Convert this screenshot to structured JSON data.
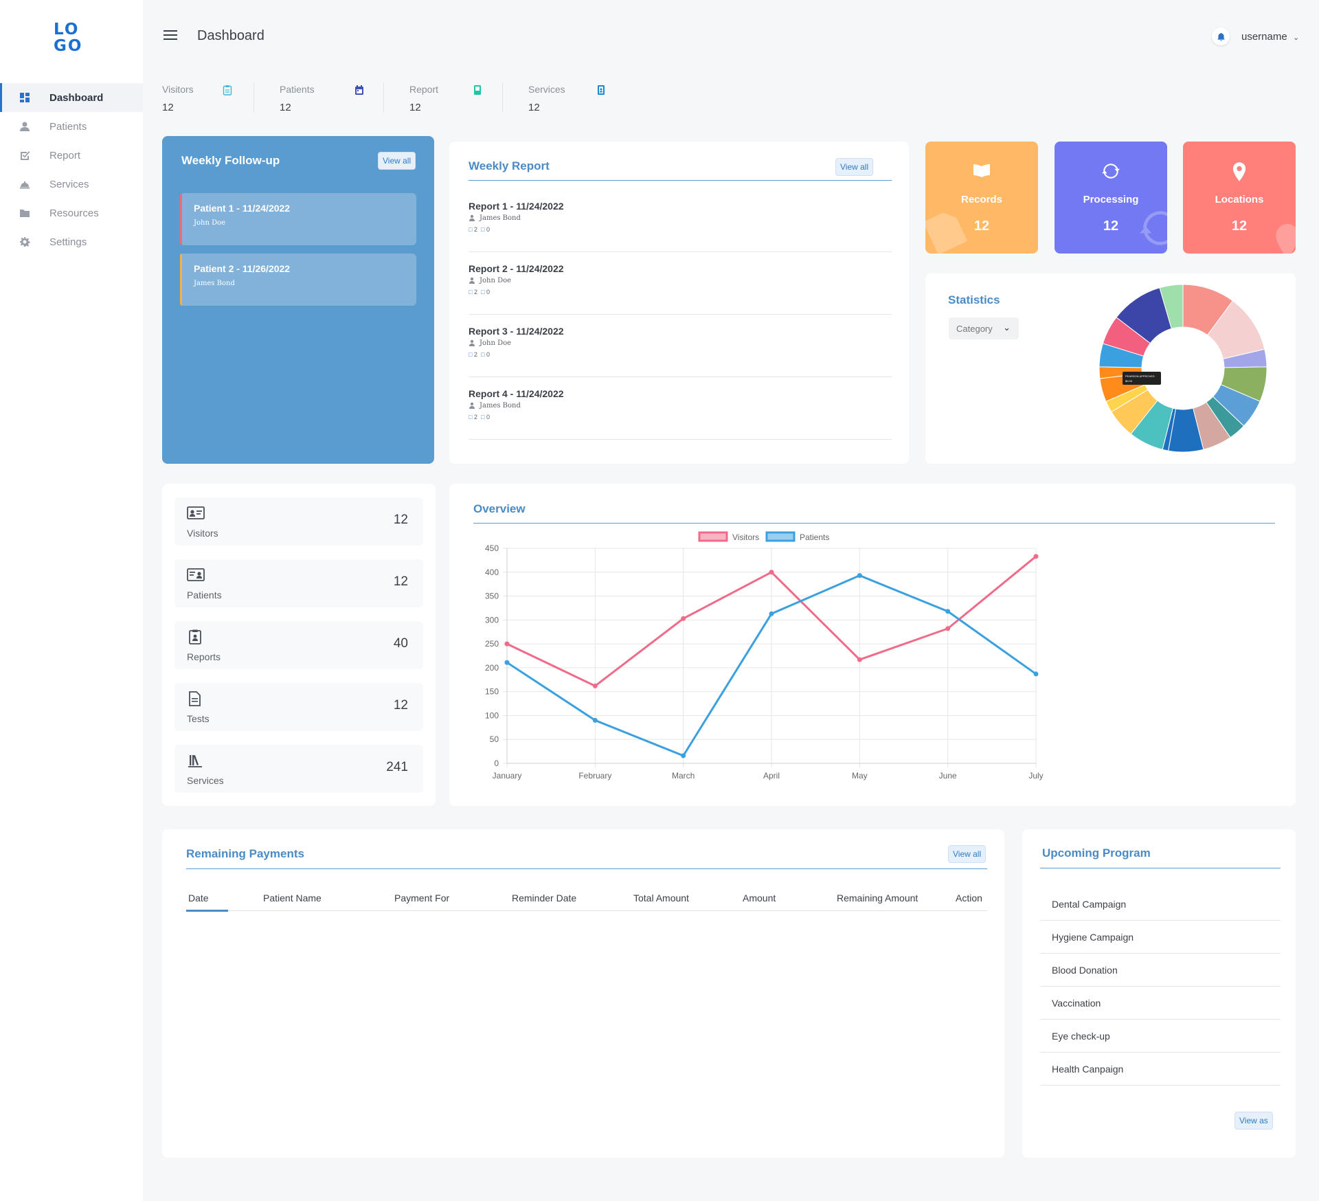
{
  "logo": "LO GO",
  "sidebar": {
    "items": [
      {
        "label": "Dashboard",
        "icon": "dashboard-icon"
      },
      {
        "label": "Patients",
        "icon": "person-icon"
      },
      {
        "label": "Report",
        "icon": "checkbox-icon"
      },
      {
        "label": "Services",
        "icon": "cloche-icon"
      },
      {
        "label": "Resources",
        "icon": "folder-icon"
      },
      {
        "label": "Settings",
        "icon": "gear-icon"
      }
    ]
  },
  "header": {
    "title": "Dashboard",
    "username": "username"
  },
  "top_stats": [
    {
      "label": "Visitors",
      "value": "12",
      "icon": "clipboard-icon",
      "color": "#3bb9d6"
    },
    {
      "label": "Patients",
      "value": "12",
      "icon": "calendar-icon",
      "color": "#3f51b5"
    },
    {
      "label": "Report",
      "value": "12",
      "icon": "document-icon",
      "color": "#22c4a8"
    },
    {
      "label": "Services",
      "value": "12",
      "icon": "badge-icon",
      "color": "#1e88c7"
    }
  ],
  "weekly_followup": {
    "title": "Weekly Follow-up",
    "view_all": "View all",
    "items": [
      {
        "name": "Patient 1 - 11/24/2022",
        "person": "John Doe",
        "bar_color": "#f06b7a"
      },
      {
        "name": "Patient 2 - 11/26/2022",
        "person": "James Bond",
        "bar_color": "#f6b13e"
      }
    ]
  },
  "weekly_report": {
    "title": "Weekly Report",
    "view_all": "View all",
    "items": [
      {
        "name": "Report 1 - 11/24/2022",
        "author": "James Bond",
        "comments": "2",
        "attachments": "0"
      },
      {
        "name": "Report 2 - 11/24/2022",
        "author": "John Doe",
        "comments": "2",
        "attachments": "0"
      },
      {
        "name": "Report 3 - 11/24/2022",
        "author": "John Doe",
        "comments": "2",
        "attachments": "0"
      },
      {
        "name": "Report 4 - 11/24/2022",
        "author": "James Bond",
        "comments": "2",
        "attachments": "0"
      }
    ]
  },
  "tiles": [
    {
      "label": "Records",
      "value": "12",
      "color": "#ffb866",
      "icon": "book-icon"
    },
    {
      "label": "Processing",
      "value": "12",
      "color": "#7379f2",
      "icon": "refresh-icon"
    },
    {
      "label": "Locations",
      "value": "12",
      "color": "#ff7f7a",
      "icon": "location-pin-icon"
    }
  ],
  "statistics": {
    "title": "Statistics",
    "category_select": "Category",
    "tooltip_lines": [
      "PEARSON APPROVED",
      "$0.00"
    ],
    "chart_data": {
      "type": "pie",
      "values": [
        9,
        10,
        3,
        6,
        5,
        3,
        5,
        6,
        1,
        6,
        5,
        2,
        4,
        2,
        4,
        5,
        9,
        4
      ],
      "colors": [
        "#f6928a",
        "#f5d0d0",
        "#a2a6e8",
        "#8ab060",
        "#5c9fd6",
        "#3d9a9a",
        "#d4a8a0",
        "#1f6fbf",
        "#1f6fbf",
        "#4dc0c0",
        "#ffc857",
        "#ffd44d",
        "#ff8c1a",
        "#ff8c1a",
        "#3aa0e0",
        "#f25f7f",
        "#3b46a8",
        "#9edfab"
      ]
    }
  },
  "metrics": [
    {
      "label": "Visitors",
      "value": "12",
      "icon": "id-card-icon"
    },
    {
      "label": "Patients",
      "value": "12",
      "icon": "contact-card-icon"
    },
    {
      "label": "Reports",
      "value": "40",
      "icon": "clipboard-person-icon"
    },
    {
      "label": "Tests",
      "value": "12",
      "icon": "file-lines-icon"
    },
    {
      "label": "Services",
      "value": "241",
      "icon": "books-icon"
    }
  ],
  "overview": {
    "title": "Overview",
    "chart_data": {
      "type": "line",
      "categories": [
        "January",
        "February",
        "March",
        "April",
        "May",
        "June",
        "July"
      ],
      "series": [
        {
          "name": "Visitors",
          "values": [
            250,
            162,
            303,
            400,
            217,
            282,
            433
          ],
          "color": "#f06b8a"
        },
        {
          "name": "Patients",
          "values": [
            211,
            90,
            16,
            313,
            393,
            318,
            187
          ],
          "color": "#3aa0e0"
        }
      ],
      "ylim": [
        0,
        450
      ],
      "yticks": [
        0,
        50,
        100,
        150,
        200,
        250,
        300,
        350,
        400,
        450
      ],
      "grid": true,
      "legend": "top-center"
    }
  },
  "payments": {
    "title": "Remaining Payments",
    "view_all": "View all",
    "columns": [
      "Date",
      "Patient Name",
      "Payment For",
      "Reminder Date",
      "Total Amount",
      "Amount",
      "Remaining Amount",
      "Action"
    ]
  },
  "upcoming": {
    "title": "Upcoming Program",
    "items": [
      "Dental Campaign",
      "Hygiene Campaign",
      "Blood Donation",
      "Vaccination",
      "Eye check-up",
      "Health Canpaign"
    ],
    "view_all": "View as"
  }
}
